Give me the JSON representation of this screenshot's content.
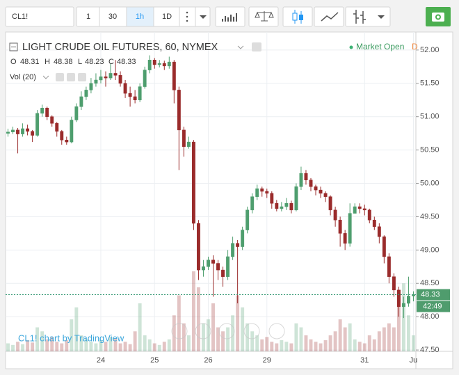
{
  "toolbar": {
    "symbol": "CL1!",
    "intervals": [
      "1",
      "30",
      "1h",
      "1D"
    ]
  },
  "chart_data": {
    "type": "candlestick",
    "title": "LIGHT CRUDE OIL FUTURES, 60, NYMEX",
    "status": "Market Open",
    "status_extra": "D",
    "ohlc_labels": [
      "O",
      "H",
      "L",
      "C"
    ],
    "last": {
      "open": 48.31,
      "high": 48.38,
      "low": 48.23,
      "close": 48.33
    },
    "volume_label": "Vol (20)",
    "countdown": "42:49",
    "watermark": "CL1! chart by TradingView",
    "up_color": "#4e9e6e",
    "down_color": "#9a2b2b",
    "grid": true,
    "ylim": [
      47.48,
      52.27
    ],
    "yticks": [
      {
        "value": 47.5,
        "label": "47.50"
      },
      {
        "value": 48,
        "label": "48.00"
      },
      {
        "value": 48.5,
        "label": "48.50"
      },
      {
        "value": 49,
        "label": "49.00"
      },
      {
        "value": 49.5,
        "label": "49.50"
      },
      {
        "value": 50,
        "label": "50.00"
      },
      {
        "value": 50.5,
        "label": "50.50"
      },
      {
        "value": 51,
        "label": "51.00"
      },
      {
        "value": 51.5,
        "label": "51.50"
      },
      {
        "value": 52,
        "label": "52.00"
      }
    ],
    "categories": [
      null,
      null,
      null,
      null,
      null,
      null,
      null,
      null,
      null,
      null,
      null,
      null,
      null,
      null,
      null,
      null,
      null,
      null,
      null,
      "24",
      null,
      null,
      null,
      null,
      null,
      null,
      null,
      null,
      null,
      null,
      "25",
      null,
      null,
      null,
      null,
      null,
      null,
      null,
      null,
      null,
      null,
      "26",
      null,
      null,
      null,
      null,
      null,
      null,
      null,
      null,
      null,
      null,
      null,
      "29",
      null,
      null,
      null,
      null,
      null,
      null,
      null,
      null,
      null,
      null,
      null,
      null,
      null,
      null,
      null,
      null,
      null,
      null,
      null,
      "31",
      null,
      null,
      null,
      null,
      null,
      null,
      null,
      null,
      null,
      "Ju"
    ],
    "ohlc": [
      [
        50.75,
        50.82,
        50.7,
        50.77
      ],
      [
        50.77,
        50.85,
        50.74,
        50.8
      ],
      [
        50.8,
        50.83,
        50.45,
        50.74
      ],
      [
        50.74,
        50.9,
        50.7,
        50.82
      ],
      [
        50.82,
        50.88,
        50.72,
        50.78
      ],
      [
        50.78,
        50.8,
        50.62,
        50.72
      ],
      [
        50.72,
        51.1,
        50.7,
        51.05
      ],
      [
        51.05,
        51.18,
        51.0,
        51.13
      ],
      [
        51.13,
        51.15,
        50.95,
        51.0
      ],
      [
        51.0,
        51.02,
        50.85,
        50.9
      ],
      [
        50.9,
        50.92,
        50.7,
        50.78
      ],
      [
        50.78,
        50.8,
        50.58,
        50.65
      ],
      [
        50.65,
        50.7,
        50.58,
        50.62
      ],
      [
        50.62,
        51.0,
        50.6,
        50.95
      ],
      [
        50.95,
        51.2,
        50.92,
        51.15
      ],
      [
        51.15,
        51.38,
        51.1,
        51.3
      ],
      [
        51.3,
        51.45,
        51.25,
        51.4
      ],
      [
        51.4,
        51.58,
        51.35,
        51.5
      ],
      [
        51.5,
        51.65,
        51.45,
        51.55
      ],
      [
        51.55,
        51.7,
        51.5,
        51.6
      ],
      [
        51.6,
        51.68,
        51.45,
        51.58
      ],
      [
        51.58,
        51.8,
        51.55,
        51.65
      ],
      [
        51.65,
        51.85,
        51.55,
        51.62
      ],
      [
        51.62,
        51.68,
        51.45,
        51.5
      ],
      [
        51.5,
        51.55,
        51.28,
        51.35
      ],
      [
        51.35,
        51.45,
        51.15,
        51.3
      ],
      [
        51.3,
        51.4,
        51.2,
        51.25
      ],
      [
        51.25,
        51.5,
        51.22,
        51.45
      ],
      [
        51.45,
        51.75,
        51.42,
        51.7
      ],
      [
        51.7,
        51.92,
        51.65,
        51.85
      ],
      [
        51.85,
        51.88,
        51.72,
        51.78
      ],
      [
        51.78,
        51.85,
        51.74,
        51.8
      ],
      [
        51.8,
        51.84,
        51.7,
        51.76
      ],
      [
        51.76,
        51.9,
        51.72,
        51.82
      ],
      [
        51.82,
        51.85,
        51.2,
        51.4
      ],
      [
        51.4,
        51.45,
        50.2,
        50.8
      ],
      [
        50.8,
        50.85,
        50.4,
        50.55
      ],
      [
        50.55,
        50.7,
        50.52,
        50.62
      ],
      [
        50.62,
        50.65,
        49.3,
        49.4
      ],
      [
        49.4,
        49.45,
        48.55,
        48.7
      ],
      [
        48.7,
        48.85,
        48.6,
        48.75
      ],
      [
        48.75,
        48.9,
        48.7,
        48.85
      ],
      [
        48.85,
        48.92,
        48.3,
        48.8
      ],
      [
        48.8,
        48.85,
        48.55,
        48.7
      ],
      [
        48.7,
        48.75,
        48.45,
        48.6
      ],
      [
        48.6,
        49.0,
        48.55,
        48.9
      ],
      [
        48.9,
        49.2,
        48.85,
        49.1
      ],
      [
        49.1,
        49.15,
        48.2,
        49.05
      ],
      [
        49.05,
        49.35,
        49.0,
        49.3
      ],
      [
        49.3,
        49.65,
        49.25,
        49.6
      ],
      [
        49.6,
        49.85,
        49.55,
        49.8
      ],
      [
        49.8,
        49.98,
        49.75,
        49.92
      ],
      [
        49.92,
        49.95,
        49.8,
        49.88
      ],
      [
        49.88,
        49.92,
        49.78,
        49.85
      ],
      [
        49.85,
        49.88,
        49.62,
        49.7
      ],
      [
        49.7,
        49.75,
        49.58,
        49.62
      ],
      [
        49.62,
        49.72,
        49.58,
        49.65
      ],
      [
        49.65,
        49.78,
        49.6,
        49.7
      ],
      [
        49.7,
        49.74,
        49.55,
        49.6
      ],
      [
        49.6,
        50.0,
        49.58,
        49.95
      ],
      [
        49.95,
        50.25,
        49.9,
        50.15
      ],
      [
        50.15,
        50.2,
        49.98,
        50.05
      ],
      [
        50.05,
        50.08,
        49.88,
        49.95
      ],
      [
        49.95,
        49.98,
        49.82,
        49.9
      ],
      [
        49.9,
        49.95,
        49.78,
        49.85
      ],
      [
        49.85,
        49.88,
        49.72,
        49.8
      ],
      [
        49.8,
        49.82,
        49.52,
        49.6
      ],
      [
        49.6,
        49.65,
        49.35,
        49.45
      ],
      [
        49.45,
        49.5,
        49.05,
        49.25
      ],
      [
        49.25,
        49.3,
        49.0,
        49.1
      ],
      [
        49.1,
        49.7,
        49.05,
        49.55
      ],
      [
        49.55,
        49.7,
        49.55,
        49.65
      ],
      [
        49.65,
        49.7,
        49.55,
        49.62
      ],
      [
        49.62,
        49.68,
        49.52,
        49.6
      ],
      [
        49.6,
        49.62,
        49.4,
        49.45
      ],
      [
        49.45,
        49.5,
        49.3,
        49.35
      ],
      [
        49.35,
        49.4,
        49.1,
        49.2
      ],
      [
        49.2,
        49.22,
        48.8,
        48.9
      ],
      [
        48.9,
        48.95,
        48.5,
        48.6
      ],
      [
        48.6,
        48.65,
        48.3,
        48.4
      ],
      [
        48.4,
        48.45,
        48.0,
        48.15
      ],
      [
        48.15,
        48.3,
        47.98,
        48.2
      ],
      [
        48.2,
        48.6,
        48.15,
        48.31
      ],
      [
        48.31,
        48.38,
        48.23,
        48.33
      ]
    ],
    "volume": [
      10,
      8,
      12,
      9,
      14,
      11,
      30,
      25,
      15,
      18,
      12,
      10,
      14,
      40,
      55,
      20,
      15,
      12,
      10,
      14,
      12,
      18,
      16,
      10,
      12,
      9,
      25,
      60,
      20,
      15,
      10,
      8,
      12,
      15,
      45,
      70,
      35,
      20,
      100,
      80,
      35,
      40,
      60,
      30,
      25,
      30,
      45,
      70,
      55,
      35,
      25,
      20,
      15,
      18,
      12,
      10,
      14,
      12,
      10,
      35,
      30,
      20,
      15,
      12,
      10,
      14,
      20,
      25,
      40,
      30,
      35,
      15,
      12,
      10,
      20,
      15,
      25,
      30,
      35,
      30,
      75,
      85,
      45,
      20
    ]
  }
}
